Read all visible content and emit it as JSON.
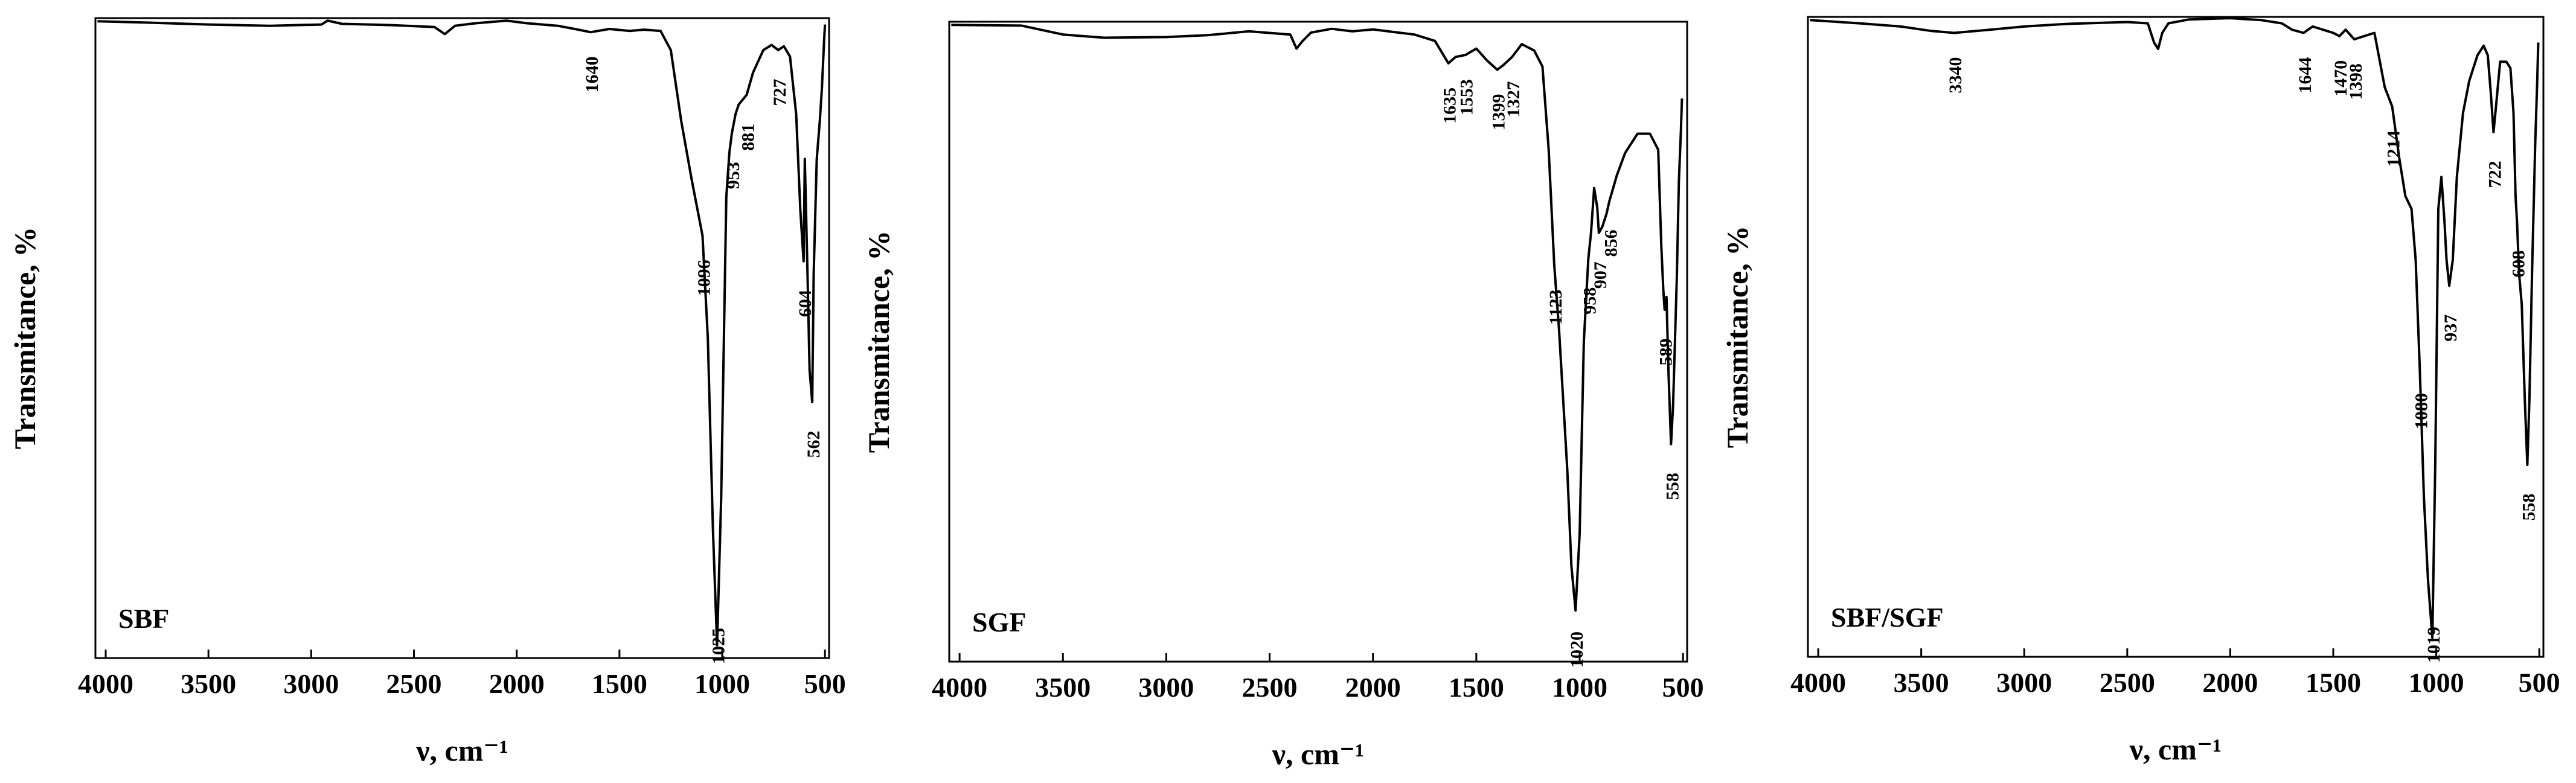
{
  "chart_data": [
    {
      "type": "line",
      "panel_label": "SBF",
      "xlabel": "ν, cm⁻¹",
      "ylabel": "Transmitance, %",
      "xlim": [
        4050,
        480
      ],
      "x_reversed": true,
      "ylim": [
        0,
        100
      ],
      "xticks": [
        4000,
        3500,
        3000,
        2500,
        2000,
        1500,
        1000,
        500
      ],
      "grid": false,
      "series": [
        {
          "x": [
            4040,
            3800,
            3500,
            3200,
            2950,
            2920,
            2850,
            2600,
            2400,
            2350,
            2300,
            2200,
            2050,
            2000,
            1950,
            1800,
            1700,
            1640,
            1550,
            1450,
            1380,
            1300,
            1250,
            1200,
            1150,
            1096,
            1070,
            1045,
            1025,
            1005,
            980,
            965,
            953,
            935,
            920,
            881,
            850,
            800,
            760,
            727,
            700,
            670,
            640,
            620,
            604,
            598,
            585,
            575,
            562,
            555,
            540,
            525,
            515,
            505,
            500
          ],
          "y": [
            99.5,
            99.3,
            99.0,
            98.8,
            99.0,
            99.6,
            99.1,
            98.9,
            98.6,
            97.5,
            98.8,
            99.2,
            99.6,
            99.4,
            99.2,
            98.8,
            98.2,
            97.8,
            98.3,
            98.0,
            98.2,
            98.0,
            95.0,
            84.0,
            75.0,
            66.0,
            50.0,
            20.0,
            2.0,
            25.0,
            72.0,
            79.0,
            82.0,
            85.0,
            86.5,
            88.0,
            91.5,
            95.0,
            95.8,
            95.0,
            95.6,
            94.0,
            85.0,
            70.0,
            62.0,
            78.0,
            60.0,
            45.0,
            40.0,
            60.0,
            78.0,
            84.0,
            89.0,
            96.0,
            99.0
          ]
        }
      ],
      "annotations": [
        {
          "text": "1640",
          "x": 1640,
          "y": 97.8
        },
        {
          "text": "1096",
          "x": 1096,
          "y": 66.0
        },
        {
          "text": "1025",
          "x": 1025,
          "y": 2.0
        },
        {
          "text": "953",
          "x": 953,
          "y": 82.0
        },
        {
          "text": "881",
          "x": 881,
          "y": 88.0
        },
        {
          "text": "727",
          "x": 727,
          "y": 95.0
        },
        {
          "text": "604",
          "x": 604,
          "y": 62.0
        },
        {
          "text": "562",
          "x": 562,
          "y": 40.0
        }
      ]
    },
    {
      "type": "line",
      "panel_label": "SGF",
      "xlabel": "ν, cm⁻¹",
      "ylabel": "Transmitance, %",
      "xlim": [
        4050,
        480
      ],
      "x_reversed": true,
      "ylim": [
        0,
        100
      ],
      "xticks": [
        4000,
        3500,
        3000,
        2500,
        2000,
        1500,
        1000,
        500
      ],
      "grid": false,
      "series": [
        {
          "x": [
            4040,
            3700,
            3500,
            3300,
            3000,
            2800,
            2600,
            2400,
            2370,
            2340,
            2300,
            2200,
            2100,
            2000,
            1900,
            1800,
            1700,
            1635,
            1600,
            1553,
            1500,
            1450,
            1399,
            1370,
            1327,
            1280,
            1220,
            1180,
            1150,
            1123,
            1100,
            1060,
            1040,
            1020,
            1000,
            980,
            958,
            945,
            930,
            915,
            907,
            890,
            870,
            856,
            820,
            780,
            720,
            660,
            620,
            605,
            595,
            589,
            580,
            570,
            558,
            548,
            530,
            520,
            510,
            505
          ],
          "y": [
            99.5,
            99.4,
            98.0,
            97.5,
            97.6,
            97.9,
            98.5,
            98.0,
            95.8,
            97.0,
            98.3,
            98.9,
            98.5,
            98.8,
            98.4,
            98.0,
            97.0,
            93.5,
            94.5,
            94.8,
            95.8,
            94.0,
            92.5,
            93.2,
            94.5,
            96.5,
            95.5,
            93.0,
            80.0,
            62.0,
            52.0,
            30.0,
            15.0,
            8.0,
            20.0,
            50.0,
            63.0,
            67.0,
            74.0,
            71.0,
            67.0,
            68.0,
            70.0,
            72.0,
            76.0,
            79.5,
            82.5,
            82.5,
            80.0,
            65.0,
            58.0,
            55.0,
            57.0,
            45.0,
            34.0,
            40.0,
            60.0,
            75.0,
            83.0,
            88.0
          ]
        }
      ],
      "annotations": [
        {
          "text": "1635",
          "x": 1635,
          "y": 93.5
        },
        {
          "text": "1553",
          "x": 1553,
          "y": 94.8
        },
        {
          "text": "1399",
          "x": 1399,
          "y": 92.5
        },
        {
          "text": "1327",
          "x": 1327,
          "y": 94.5
        },
        {
          "text": "1123",
          "x": 1123,
          "y": 62.0
        },
        {
          "text": "1020",
          "x": 1020,
          "y": 8.0
        },
        {
          "text": "958",
          "x": 958,
          "y": 63.0
        },
        {
          "text": "907",
          "x": 907,
          "y": 67.0
        },
        {
          "text": "856",
          "x": 856,
          "y": 72.0
        },
        {
          "text": "589",
          "x": 589,
          "y": 55.0
        },
        {
          "text": "558",
          "x": 558,
          "y": 34.0
        }
      ]
    },
    {
      "type": "line",
      "panel_label": "SBF/SGF",
      "xlabel": "ν, cm⁻¹",
      "ylabel": "Transmitance, %",
      "xlim": [
        4050,
        480
      ],
      "x_reversed": true,
      "ylim": [
        0,
        100
      ],
      "xticks": [
        4000,
        3500,
        3000,
        2500,
        2000,
        1500,
        1000,
        500
      ],
      "grid": false,
      "series": [
        {
          "x": [
            4040,
            3800,
            3600,
            3450,
            3340,
            3200,
            3000,
            2800,
            2500,
            2400,
            2370,
            2350,
            2330,
            2300,
            2200,
            2000,
            1850,
            1750,
            1700,
            1644,
            1600,
            1550,
            1500,
            1470,
            1440,
            1398,
            1350,
            1300,
            1250,
            1214,
            1180,
            1150,
            1120,
            1100,
            1080,
            1060,
            1040,
            1019,
            1005,
            990,
            975,
            960,
            950,
            937,
            920,
            900,
            870,
            840,
            800,
            770,
            750,
            735,
            722,
            710,
            690,
            660,
            640,
            625,
            615,
            608,
            598,
            585,
            570,
            558,
            548,
            535,
            520,
            510,
            505
          ],
          "y": [
            99.5,
            99.0,
            98.5,
            97.8,
            97.5,
            97.9,
            98.5,
            98.9,
            99.2,
            99.0,
            96.0,
            95.0,
            97.5,
            99.0,
            99.6,
            99.8,
            99.5,
            99.0,
            98.0,
            97.5,
            98.5,
            98.0,
            97.5,
            97.0,
            98.0,
            96.5,
            97.0,
            97.5,
            89.0,
            86.0,
            78.0,
            72.0,
            70.0,
            62.0,
            45.0,
            25.0,
            12.0,
            3.0,
            30.0,
            70.0,
            75.0,
            68.0,
            62.0,
            58.0,
            62.0,
            75.0,
            85.0,
            90.0,
            94.0,
            95.5,
            94.0,
            88.0,
            82.0,
            86.0,
            93.0,
            93.0,
            92.0,
            85.0,
            72.0,
            68.0,
            60.0,
            55.0,
            40.0,
            30.0,
            40.0,
            60.0,
            80.0,
            90.0,
            96.0
          ]
        }
      ],
      "annotations": [
        {
          "text": "3340",
          "x": 3340,
          "y": 97.5
        },
        {
          "text": "1644",
          "x": 1644,
          "y": 97.5
        },
        {
          "text": "1470",
          "x": 1470,
          "y": 97.0
        },
        {
          "text": "1398",
          "x": 1398,
          "y": 96.5
        },
        {
          "text": "1214",
          "x": 1214,
          "y": 86.0
        },
        {
          "text": "1080",
          "x": 1080,
          "y": 45.0
        },
        {
          "text": "1019",
          "x": 1019,
          "y": 3.0
        },
        {
          "text": "937",
          "x": 937,
          "y": 58.0
        },
        {
          "text": "722",
          "x": 722,
          "y": 82.0
        },
        {
          "text": "608",
          "x": 608,
          "y": 68.0
        },
        {
          "text": "558",
          "x": 558,
          "y": 30.0
        }
      ]
    }
  ]
}
